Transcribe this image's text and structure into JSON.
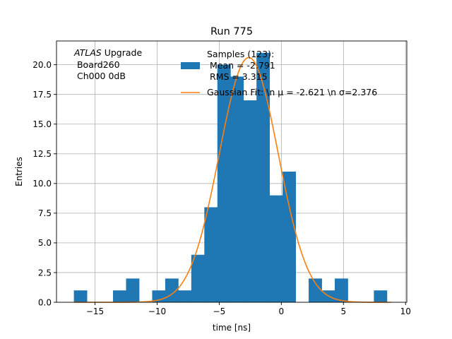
{
  "chart_data": {
    "type": "bar",
    "title": "Run 775",
    "xlabel": "time [ns]",
    "ylabel": "Entries",
    "xlim": [
      -18.1,
      10.1
    ],
    "ylim": [
      0,
      22
    ],
    "grid": true,
    "x_ticks": [
      -15,
      -10,
      -5,
      0,
      5,
      10
    ],
    "x_tick_labels": [
      "−15",
      "−10",
      "−5",
      "0",
      "5",
      "10"
    ],
    "y_ticks": [
      0,
      2.5,
      5,
      7.5,
      10,
      12.5,
      15,
      17.5,
      20
    ],
    "y_tick_labels": [
      "0.0",
      "2.5",
      "5.0",
      "7.5",
      "10.0",
      "12.5",
      "15.0",
      "17.5",
      "20.0"
    ],
    "annotation": {
      "italic": "ATLAS",
      "rest": " Upgrade",
      "line2": " Board260",
      "line3": " Ch000 0dB"
    },
    "legend": {
      "placement": "top-right",
      "hist_label_lines": [
        "Samples (123):",
        " Mean = -2.791",
        " RMS = 3.315"
      ],
      "fit_label": "Gaussian Fit: \\n μ = -2.621 \\n σ=2.376"
    },
    "histogram": {
      "name": "Samples (123)",
      "color": "#1f77b4",
      "bins": [
        {
          "x0": -16.7,
          "x1": -15.65,
          "count": 1
        },
        {
          "x0": -15.65,
          "x1": -14.6,
          "count": 0
        },
        {
          "x0": -14.6,
          "x1": -13.55,
          "count": 0
        },
        {
          "x0": -13.55,
          "x1": -12.5,
          "count": 1
        },
        {
          "x0": -12.5,
          "x1": -11.45,
          "count": 2
        },
        {
          "x0": -11.45,
          "x1": -10.4,
          "count": 0
        },
        {
          "x0": -10.4,
          "x1": -9.35,
          "count": 1
        },
        {
          "x0": -9.35,
          "x1": -8.3,
          "count": 2
        },
        {
          "x0": -8.3,
          "x1": -7.25,
          "count": 1
        },
        {
          "x0": -7.25,
          "x1": -6.2,
          "count": 4
        },
        {
          "x0": -6.2,
          "x1": -5.15,
          "count": 8
        },
        {
          "x0": -5.15,
          "x1": -4.1,
          "count": 20
        },
        {
          "x0": -4.1,
          "x1": -3.05,
          "count": 19
        },
        {
          "x0": -3.05,
          "x1": -2.0,
          "count": 17
        },
        {
          "x0": -2.0,
          "x1": -0.95,
          "count": 21
        },
        {
          "x0": -0.95,
          "x1": 0.1,
          "count": 9
        },
        {
          "x0": 0.1,
          "x1": 1.15,
          "count": 11
        },
        {
          "x0": 1.15,
          "x1": 2.2,
          "count": 0
        },
        {
          "x0": 2.2,
          "x1": 3.25,
          "count": 2
        },
        {
          "x0": 3.25,
          "x1": 4.3,
          "count": 1
        },
        {
          "x0": 4.3,
          "x1": 5.35,
          "count": 2
        },
        {
          "x0": 5.35,
          "x1": 6.4,
          "count": 0
        },
        {
          "x0": 6.4,
          "x1": 7.45,
          "count": 0
        },
        {
          "x0": 7.45,
          "x1": 8.5,
          "count": 1
        }
      ]
    },
    "fit": {
      "name": "Gaussian Fit",
      "color": "#ff7f0e",
      "mu": -2.621,
      "sigma": 2.376,
      "amplitude": 20.6,
      "x_range": [
        -16.7,
        8.8
      ]
    }
  }
}
